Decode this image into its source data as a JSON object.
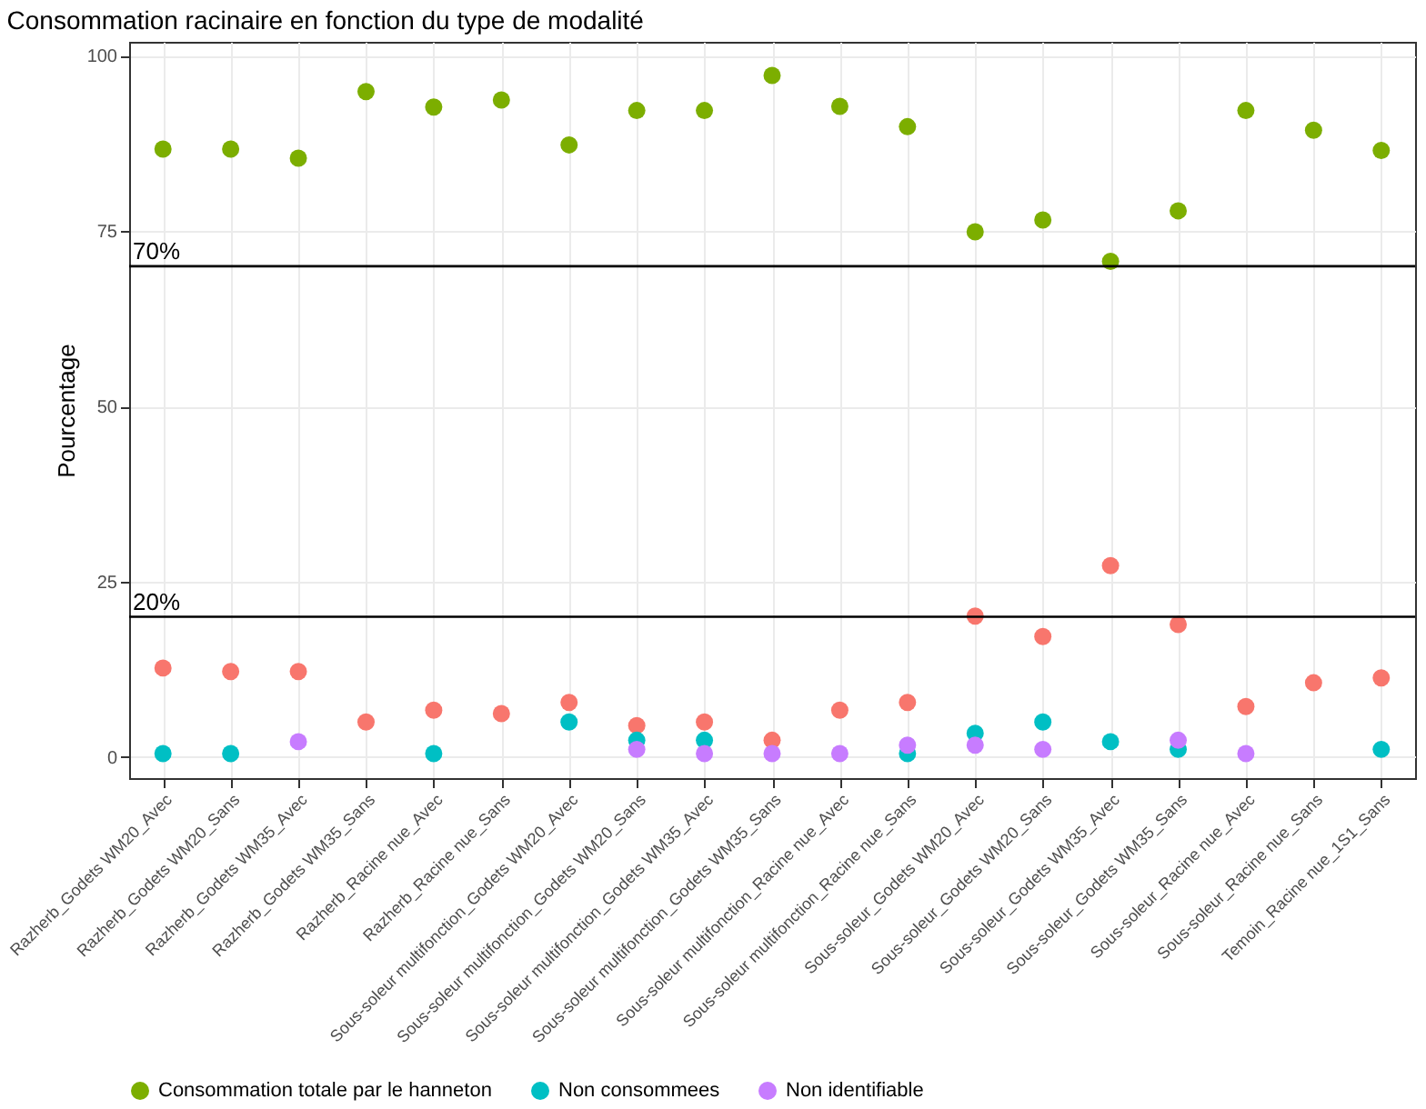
{
  "chart_data": {
    "type": "scatter",
    "title": "Consommation racinaire en fonction du type de modalité",
    "ylabel": "Pourcentage",
    "categories": [
      "Razherb_Godets WM20_Avec",
      "Razherb_Godets WM20_Sans",
      "Razherb_Godets WM35_Avec",
      "Razherb_Godets WM35_Sans",
      "Razherb_Racine nue_Avec",
      "Razherb_Racine nue_Sans",
      "Sous-soleur multifonction_Godets WM20_Avec",
      "Sous-soleur multifonction_Godets WM20_Sans",
      "Sous-soleur multifonction_Godets WM35_Avec",
      "Sous-soleur multifonction_Godets WM35_Sans",
      "Sous-soleur multifonction_Racine nue_Avec",
      "Sous-soleur multifonction_Racine nue_Sans",
      "Sous-soleur_Godets WM20_Avec",
      "Sous-soleur_Godets WM20_Sans",
      "Sous-soleur_Godets WM35_Avec",
      "Sous-soleur_Godets WM35_Sans",
      "Sous-soleur_Racine nue_Avec",
      "Sous-soleur_Racine nue_Sans",
      "Temoin_Racine nue_1S1_Sans"
    ],
    "series": [
      {
        "color": "#f8766d",
        "values": [
          12.7,
          12.2,
          12.2,
          5.0,
          6.7,
          6.2,
          7.8,
          4.5,
          5.0,
          2.4,
          6.7,
          7.8,
          20.1,
          17.2,
          27.3,
          18.9,
          7.2,
          10.6,
          11.3
        ]
      },
      {
        "name": "Consommation totale par le hanneton",
        "color": "#7cae00",
        "values": [
          86.7,
          86.7,
          85.4,
          94.9,
          92.7,
          93.7,
          87.3,
          92.2,
          92.2,
          97.2,
          92.8,
          89.9,
          74.9,
          76.6,
          70.7,
          77.9,
          92.2,
          89.4,
          86.5
        ]
      },
      {
        "name": "Non consommees",
        "color": "#00bfc4",
        "values": [
          0.5,
          0.5,
          null,
          null,
          0.5,
          null,
          5.0,
          2.4,
          2.4,
          null,
          null,
          0.5,
          3.4,
          5.0,
          2.2,
          1.1,
          null,
          null,
          1.1
        ]
      },
      {
        "name": "Non identifiable",
        "color": "#c77cff",
        "values": [
          null,
          null,
          2.2,
          null,
          null,
          null,
          null,
          1.1,
          0.5,
          0.5,
          0.5,
          1.7,
          1.7,
          1.1,
          null,
          2.4,
          0.5,
          null,
          null
        ]
      }
    ],
    "ylim": [
      -3,
      102
    ],
    "yticks": [
      0,
      25,
      50,
      75,
      100
    ],
    "ref_lines": [
      {
        "axis": "y",
        "value": 70,
        "label": "70%",
        "color": "#000000"
      },
      {
        "axis": "y",
        "value": 20,
        "label": "20%",
        "color": "#000000"
      }
    ],
    "grid": true,
    "legend": "bottom",
    "marker": "circle"
  }
}
